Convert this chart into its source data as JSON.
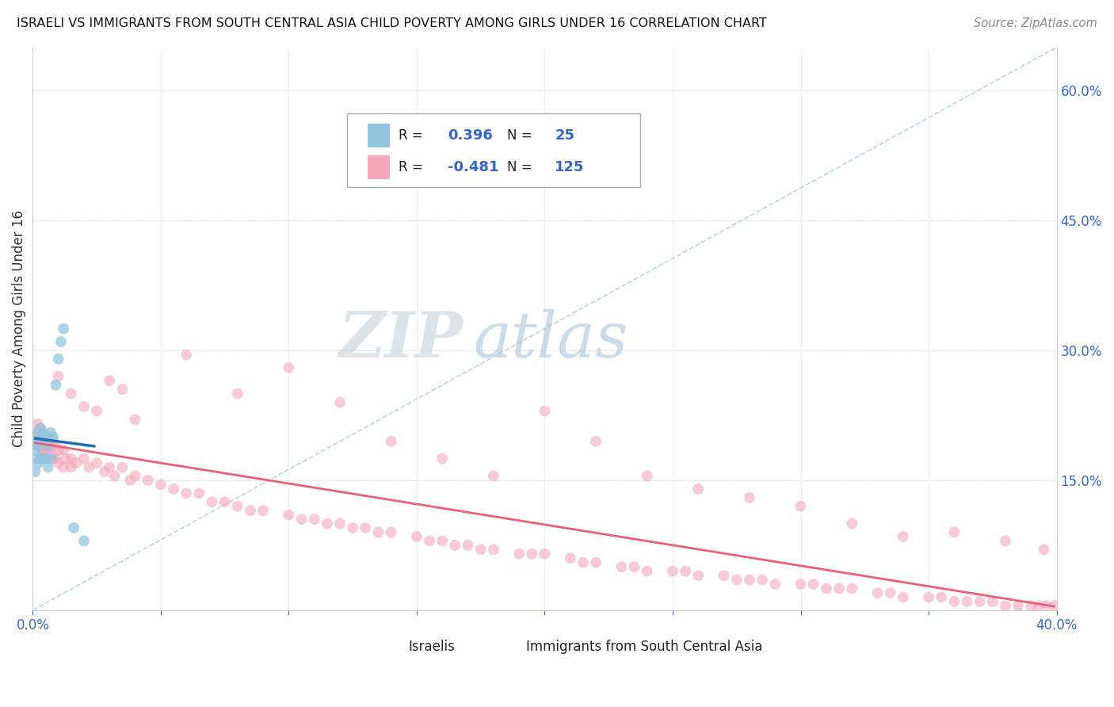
{
  "title": "ISRAELI VS IMMIGRANTS FROM SOUTH CENTRAL ASIA CHILD POVERTY AMONG GIRLS UNDER 16 CORRELATION CHART",
  "source": "Source: ZipAtlas.com",
  "ylabel": "Child Poverty Among Girls Under 16",
  "xlim": [
    0.0,
    0.4
  ],
  "ylim": [
    0.0,
    0.65
  ],
  "ytick_right_labels": [
    "15.0%",
    "30.0%",
    "45.0%",
    "60.0%"
  ],
  "ytick_right_values": [
    0.15,
    0.3,
    0.45,
    0.6
  ],
  "legend_R1": "0.396",
  "legend_N1": "25",
  "legend_R2": "-0.481",
  "legend_N2": "125",
  "color_israeli": "#92c5de",
  "color_immigrant": "#f4a6bc",
  "color_line_israeli": "#1f6db5",
  "color_line_immigrant": "#e8607a",
  "watermark_zip": "ZIP",
  "watermark_atlas": "atlas",
  "watermark_zip_color": "#c8d8e8",
  "watermark_atlas_color": "#a8c8e8",
  "israeli_x": [
    0.001,
    0.001,
    0.001,
    0.001,
    0.002,
    0.002,
    0.002,
    0.003,
    0.003,
    0.003,
    0.004,
    0.004,
    0.005,
    0.005,
    0.006,
    0.006,
    0.007,
    0.007,
    0.008,
    0.009,
    0.01,
    0.011,
    0.012,
    0.016,
    0.02
  ],
  "israeli_y": [
    0.195,
    0.185,
    0.175,
    0.16,
    0.205,
    0.19,
    0.17,
    0.21,
    0.195,
    0.175,
    0.205,
    0.175,
    0.2,
    0.175,
    0.19,
    0.165,
    0.205,
    0.175,
    0.2,
    0.26,
    0.29,
    0.31,
    0.325,
    0.095,
    0.08
  ],
  "immigrant_x": [
    0.001,
    0.001,
    0.002,
    0.002,
    0.002,
    0.003,
    0.003,
    0.003,
    0.004,
    0.004,
    0.005,
    0.005,
    0.006,
    0.006,
    0.007,
    0.007,
    0.008,
    0.008,
    0.009,
    0.009,
    0.01,
    0.01,
    0.012,
    0.012,
    0.013,
    0.015,
    0.015,
    0.017,
    0.02,
    0.022,
    0.025,
    0.028,
    0.03,
    0.032,
    0.035,
    0.038,
    0.04,
    0.045,
    0.05,
    0.055,
    0.06,
    0.065,
    0.07,
    0.075,
    0.08,
    0.085,
    0.09,
    0.1,
    0.105,
    0.11,
    0.115,
    0.12,
    0.125,
    0.13,
    0.135,
    0.14,
    0.15,
    0.155,
    0.16,
    0.165,
    0.17,
    0.175,
    0.18,
    0.19,
    0.195,
    0.2,
    0.21,
    0.215,
    0.22,
    0.23,
    0.235,
    0.24,
    0.25,
    0.255,
    0.26,
    0.27,
    0.275,
    0.28,
    0.285,
    0.29,
    0.3,
    0.305,
    0.31,
    0.315,
    0.32,
    0.33,
    0.335,
    0.34,
    0.35,
    0.355,
    0.36,
    0.365,
    0.37,
    0.375,
    0.38,
    0.385,
    0.39,
    0.393,
    0.396,
    0.399,
    0.04,
    0.06,
    0.08,
    0.1,
    0.12,
    0.14,
    0.16,
    0.18,
    0.2,
    0.22,
    0.24,
    0.26,
    0.28,
    0.3,
    0.32,
    0.34,
    0.36,
    0.38,
    0.395,
    0.01,
    0.015,
    0.02,
    0.025,
    0.03,
    0.035
  ],
  "immigrant_y": [
    0.205,
    0.195,
    0.215,
    0.205,
    0.19,
    0.21,
    0.195,
    0.185,
    0.205,
    0.185,
    0.2,
    0.185,
    0.2,
    0.185,
    0.19,
    0.18,
    0.195,
    0.175,
    0.19,
    0.175,
    0.185,
    0.17,
    0.185,
    0.165,
    0.175,
    0.175,
    0.165,
    0.17,
    0.175,
    0.165,
    0.17,
    0.16,
    0.165,
    0.155,
    0.165,
    0.15,
    0.155,
    0.15,
    0.145,
    0.14,
    0.135,
    0.135,
    0.125,
    0.125,
    0.12,
    0.115,
    0.115,
    0.11,
    0.105,
    0.105,
    0.1,
    0.1,
    0.095,
    0.095,
    0.09,
    0.09,
    0.085,
    0.08,
    0.08,
    0.075,
    0.075,
    0.07,
    0.07,
    0.065,
    0.065,
    0.065,
    0.06,
    0.055,
    0.055,
    0.05,
    0.05,
    0.045,
    0.045,
    0.045,
    0.04,
    0.04,
    0.035,
    0.035,
    0.035,
    0.03,
    0.03,
    0.03,
    0.025,
    0.025,
    0.025,
    0.02,
    0.02,
    0.015,
    0.015,
    0.015,
    0.01,
    0.01,
    0.01,
    0.01,
    0.005,
    0.005,
    0.005,
    0.005,
    0.005,
    0.005,
    0.22,
    0.295,
    0.25,
    0.28,
    0.24,
    0.195,
    0.175,
    0.155,
    0.23,
    0.195,
    0.155,
    0.14,
    0.13,
    0.12,
    0.1,
    0.085,
    0.09,
    0.08,
    0.07,
    0.27,
    0.25,
    0.235,
    0.23,
    0.265,
    0.255
  ]
}
